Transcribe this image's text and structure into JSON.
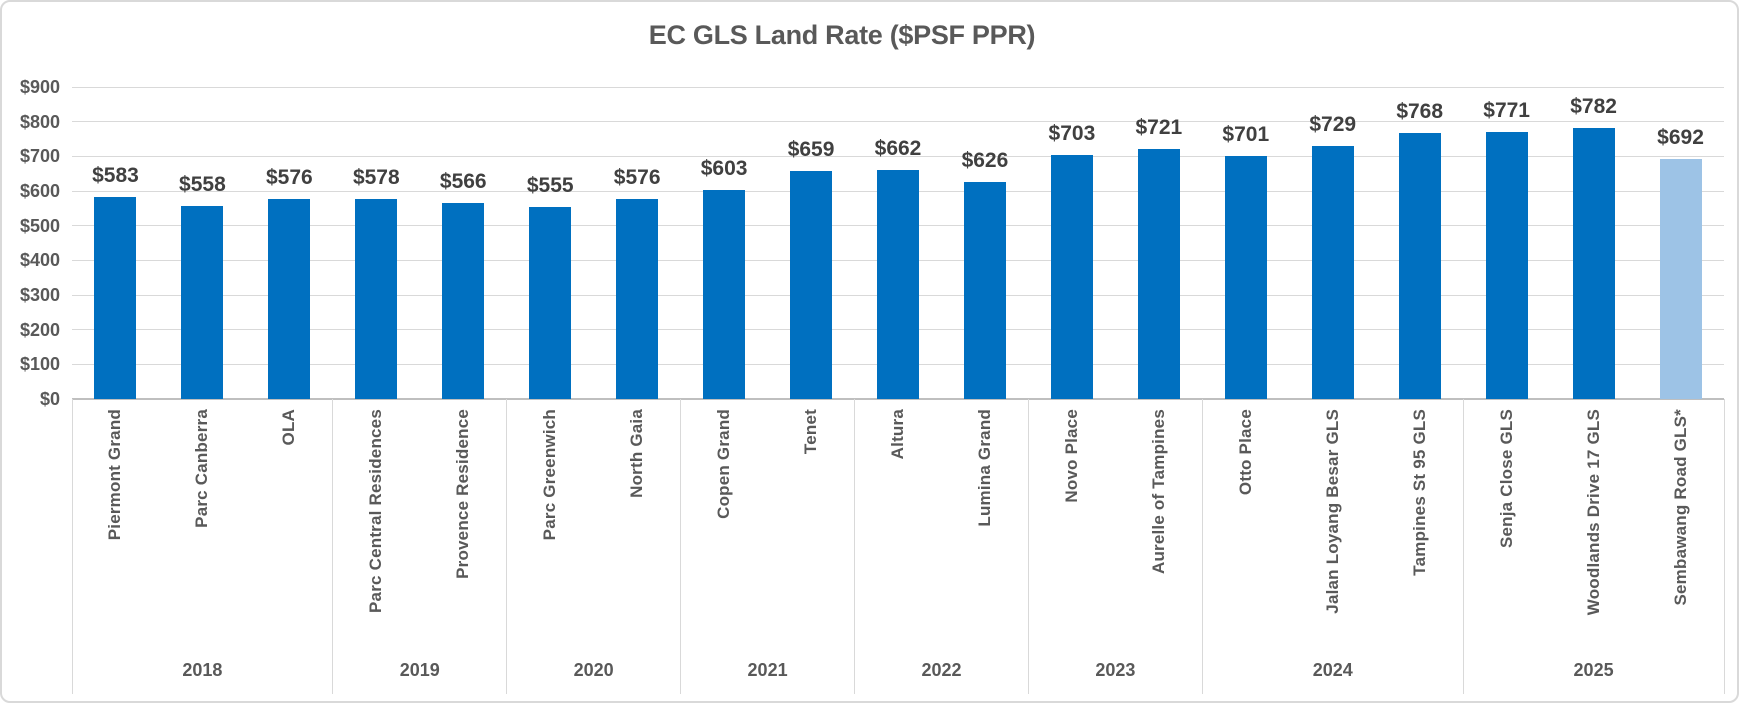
{
  "chart_data": {
    "type": "bar",
    "title": "EC GLS Land Rate ($PSF PPR)",
    "xlabel": "",
    "ylabel": "",
    "ylim": [
      0,
      900
    ],
    "ytick_step": 100,
    "ytick_prefix": "$",
    "grid": true,
    "legend": "none",
    "colors": {
      "bar": "#0070c0",
      "highlight_bar": "#9dc3e6",
      "gridline": "#d9d9d9",
      "axis_line": "#bfbfbf",
      "axis_text": "#595959",
      "value_text": "#404040",
      "border": "#d9d9d9"
    },
    "groups": [
      {
        "year": "2018",
        "projects": [
          {
            "name": "Piermont Grand",
            "value": 583
          },
          {
            "name": "Parc Canberra",
            "value": 558
          },
          {
            "name": "OLA",
            "value": 576
          }
        ]
      },
      {
        "year": "2019",
        "projects": [
          {
            "name": "Parc Central Residences",
            "value": 578
          },
          {
            "name": "Provence Residence",
            "value": 566
          }
        ]
      },
      {
        "year": "2020",
        "projects": [
          {
            "name": "Parc Greenwich",
            "value": 555
          },
          {
            "name": "North Gaia",
            "value": 576
          }
        ]
      },
      {
        "year": "2021",
        "projects": [
          {
            "name": "Copen Grand",
            "value": 603
          },
          {
            "name": "Tenet",
            "value": 659
          }
        ]
      },
      {
        "year": "2022",
        "projects": [
          {
            "name": "Altura",
            "value": 662
          },
          {
            "name": "Lumina Grand",
            "value": 626
          }
        ]
      },
      {
        "year": "2023",
        "projects": [
          {
            "name": "Novo Place",
            "value": 703
          },
          {
            "name": "Aurelle of Tampines",
            "value": 721
          }
        ]
      },
      {
        "year": "2024",
        "projects": [
          {
            "name": "Otto Place",
            "value": 701
          },
          {
            "name": "Jalan Loyang Besar GLS",
            "value": 729
          },
          {
            "name": "Tampines St 95 GLS",
            "value": 768
          }
        ]
      },
      {
        "year": "2025",
        "projects": [
          {
            "name": "Senja Close GLS",
            "value": 771
          },
          {
            "name": "Woodlands Drive 17 GLS",
            "value": 782
          },
          {
            "name": "Sembawang Road GLS*",
            "value": 692,
            "highlight": true
          }
        ]
      }
    ]
  }
}
